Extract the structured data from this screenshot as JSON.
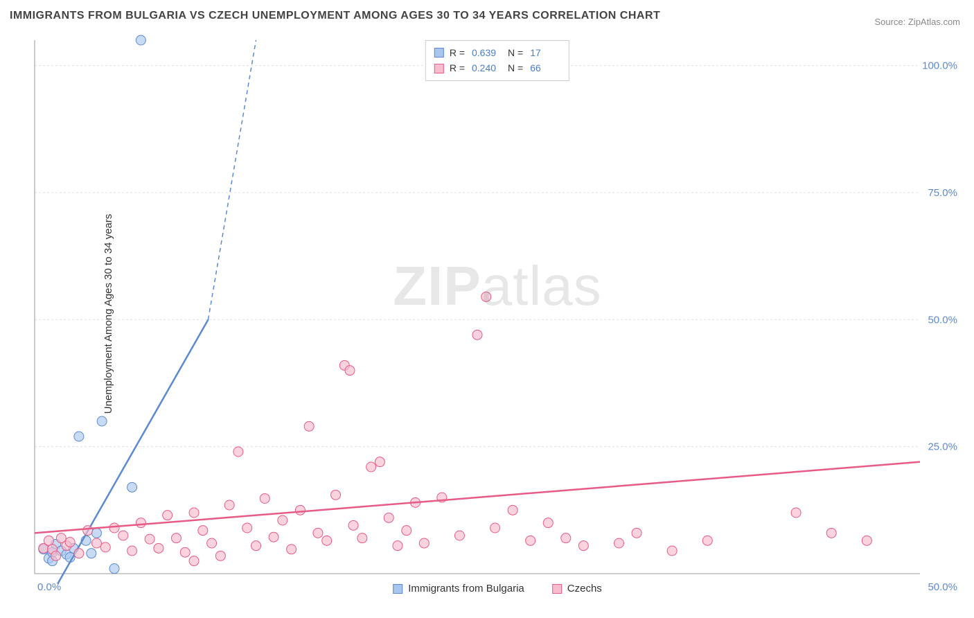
{
  "title": "IMMIGRANTS FROM BULGARIA VS CZECH UNEMPLOYMENT AMONG AGES 30 TO 34 YEARS CORRELATION CHART",
  "source": "Source: ZipAtlas.com",
  "ylabel": "Unemployment Among Ages 30 to 34 years",
  "watermark_zip": "ZIP",
  "watermark_atlas": "atlas",
  "chart": {
    "type": "scatter",
    "background_color": "#ffffff",
    "grid_color": "#e0e0e0",
    "axis_color": "#999999",
    "xlim": [
      0,
      50
    ],
    "ylim": [
      0,
      105
    ],
    "xticks": [
      {
        "pos": 0,
        "label": "0.0%"
      },
      {
        "pos": 50,
        "label": "50.0%"
      }
    ],
    "yticks": [
      {
        "pos": 25,
        "label": "25.0%"
      },
      {
        "pos": 50,
        "label": "50.0%"
      },
      {
        "pos": 75,
        "label": "75.0%"
      },
      {
        "pos": 100,
        "label": "100.0%"
      }
    ],
    "tick_label_color": "#5b8ad0",
    "tick_label_fontsize": 15,
    "series": [
      {
        "name": "Immigrants from Bulgaria",
        "fill": "#a9c7ee",
        "stroke": "#5b8ad0",
        "marker_r": 7,
        "R": "0.639",
        "N": "17",
        "points": [
          [
            0.8,
            3.0
          ],
          [
            1.0,
            4.2
          ],
          [
            1.2,
            5.8
          ],
          [
            1.5,
            4.5
          ],
          [
            1.8,
            3.8
          ],
          [
            2.2,
            5.0
          ],
          [
            2.5,
            27.0
          ],
          [
            2.9,
            6.5
          ],
          [
            3.2,
            4.0
          ],
          [
            3.5,
            8.0
          ],
          [
            3.8,
            30.0
          ],
          [
            4.5,
            1.0
          ],
          [
            5.5,
            17.0
          ],
          [
            6.0,
            105.0
          ],
          [
            1.0,
            2.5
          ],
          [
            2.0,
            3.2
          ],
          [
            0.5,
            4.8
          ]
        ],
        "regression": {
          "x1": 1.3,
          "y1": -2,
          "x2": 9.8,
          "y2": 50,
          "dash_x2": 12.5,
          "dash_y2": 105
        }
      },
      {
        "name": "Czechs",
        "fill": "#f7bccd",
        "stroke": "#e75b86",
        "marker_r": 7,
        "R": "0.240",
        "N": "66",
        "points": [
          [
            0.5,
            5.0
          ],
          [
            0.8,
            6.5
          ],
          [
            1.0,
            4.8
          ],
          [
            1.2,
            3.5
          ],
          [
            1.5,
            7.0
          ],
          [
            1.8,
            5.5
          ],
          [
            2.0,
            6.2
          ],
          [
            2.5,
            4.0
          ],
          [
            3.0,
            8.5
          ],
          [
            3.5,
            6.0
          ],
          [
            4.0,
            5.2
          ],
          [
            4.5,
            9.0
          ],
          [
            5.0,
            7.5
          ],
          [
            5.5,
            4.5
          ],
          [
            6.0,
            10.0
          ],
          [
            6.5,
            6.8
          ],
          [
            7.0,
            5.0
          ],
          [
            7.5,
            11.5
          ],
          [
            8.0,
            7.0
          ],
          [
            8.5,
            4.2
          ],
          [
            9.0,
            12.0
          ],
          [
            9.5,
            8.5
          ],
          [
            10.0,
            6.0
          ],
          [
            10.5,
            3.5
          ],
          [
            11.0,
            13.5
          ],
          [
            11.5,
            24.0
          ],
          [
            12.0,
            9.0
          ],
          [
            12.5,
            5.5
          ],
          [
            13.0,
            14.8
          ],
          [
            13.5,
            7.2
          ],
          [
            14.0,
            10.5
          ],
          [
            14.5,
            4.8
          ],
          [
            15.0,
            12.5
          ],
          [
            15.5,
            29.0
          ],
          [
            16.0,
            8.0
          ],
          [
            16.5,
            6.5
          ],
          [
            17.0,
            15.5
          ],
          [
            17.5,
            41.0
          ],
          [
            17.8,
            40.0
          ],
          [
            18.0,
            9.5
          ],
          [
            18.5,
            7.0
          ],
          [
            19.0,
            21.0
          ],
          [
            19.5,
            22.0
          ],
          [
            20.0,
            11.0
          ],
          [
            20.5,
            5.5
          ],
          [
            21.0,
            8.5
          ],
          [
            21.5,
            14.0
          ],
          [
            22.0,
            6.0
          ],
          [
            23.0,
            15.0
          ],
          [
            24.0,
            7.5
          ],
          [
            25.0,
            47.0
          ],
          [
            25.5,
            54.5
          ],
          [
            26.0,
            9.0
          ],
          [
            27.0,
            12.5
          ],
          [
            28.0,
            6.5
          ],
          [
            29.0,
            10.0
          ],
          [
            30.0,
            7.0
          ],
          [
            31.0,
            5.5
          ],
          [
            33.0,
            6.0
          ],
          [
            34.0,
            8.0
          ],
          [
            36.0,
            4.5
          ],
          [
            38.0,
            6.5
          ],
          [
            43.0,
            12.0
          ],
          [
            45.0,
            8.0
          ],
          [
            47.0,
            6.5
          ],
          [
            9.0,
            2.5
          ]
        ],
        "regression": {
          "x1": 0,
          "y1": 8.0,
          "x2": 50,
          "y2": 22.0
        }
      }
    ]
  },
  "bottom_legend": [
    {
      "label": "Immigrants from Bulgaria",
      "fill": "#a9c7ee",
      "stroke": "#5b8ad0"
    },
    {
      "label": "Czechs",
      "fill": "#f7bccd",
      "stroke": "#e75b86"
    }
  ]
}
